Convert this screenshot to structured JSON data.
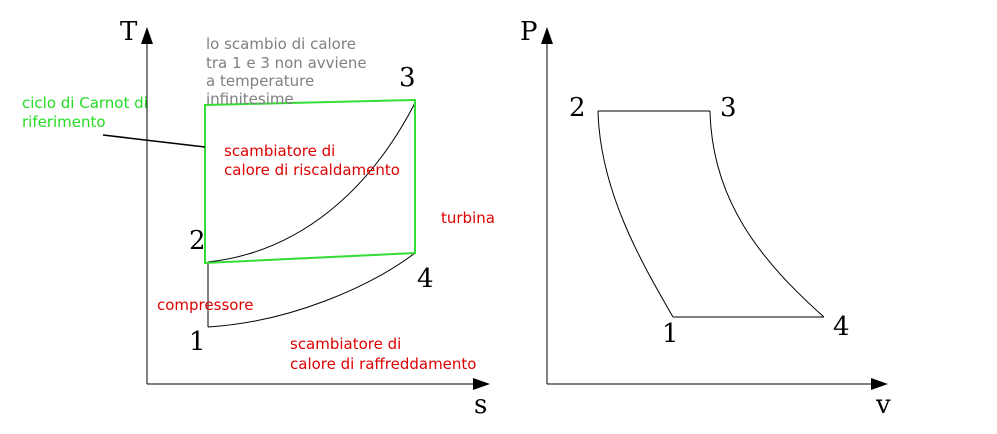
{
  "ts_diagram": {
    "axis_y_label": "T",
    "axis_x_label": "s",
    "points": {
      "p1": "1",
      "p2": "2",
      "p3": "3",
      "p4": "4"
    },
    "note_lines": [
      "lo scambio di calore",
      "tra 1 e 3 non avviene",
      "a temperature",
      "infinitesime"
    ],
    "carnot_label_lines": [
      "ciclo di Carnot di",
      "riferimento"
    ],
    "heating_exchanger_lines": [
      "scambiatore di",
      "calore di riscaldamento"
    ],
    "turbine": "turbina",
    "compressor": "compressore",
    "cooling_exchanger_lines": [
      "scambiatore di",
      "calore di raffreddamento"
    ]
  },
  "pv_diagram": {
    "axis_y_label": "P",
    "axis_x_label": "v",
    "points": {
      "p1": "1",
      "p2": "2",
      "p3": "3",
      "p4": "4"
    }
  },
  "colors": {
    "axis": "#000000",
    "curve": "#000000",
    "carnot": "#33dd33",
    "annotation_red": "#dd0000",
    "annotation_gray": "#808080",
    "carnot_label": "#22dd22"
  }
}
